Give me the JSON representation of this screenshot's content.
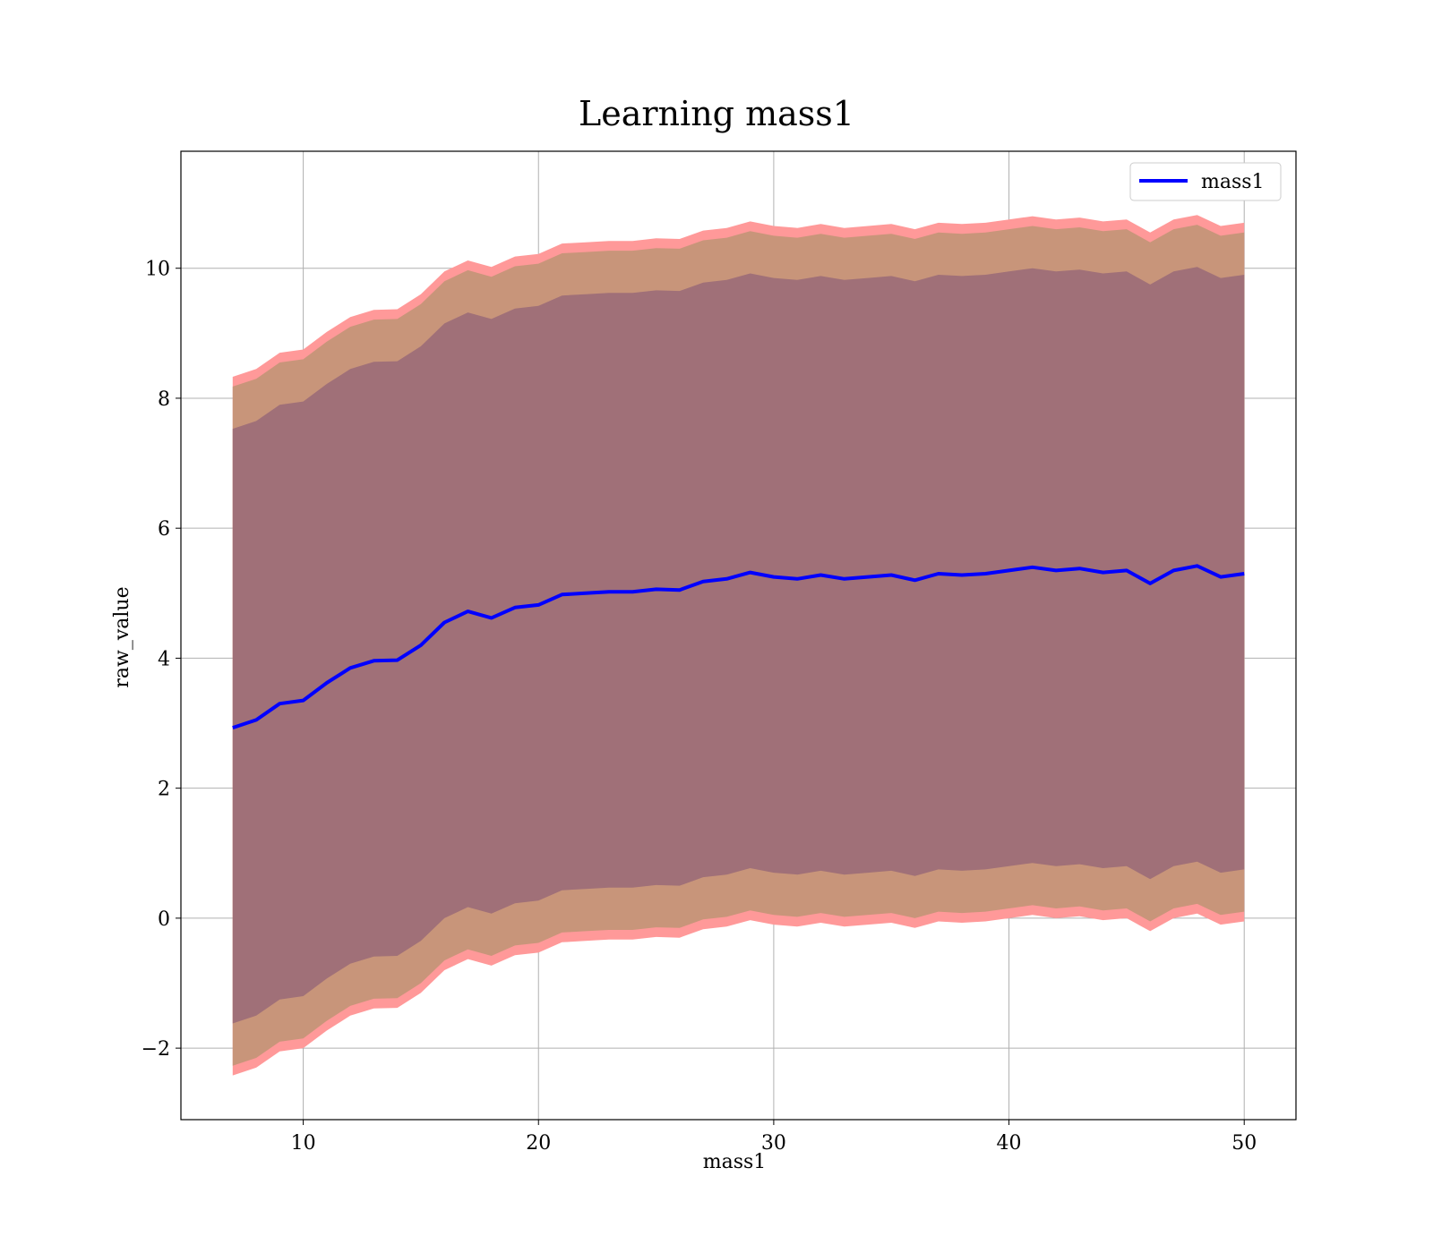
{
  "chart_data": {
    "type": "line",
    "title": "Learning mass1",
    "xlabel": "mass1",
    "ylabel": "raw_value",
    "xlim": [
      4.8,
      52.2
    ],
    "ylim": [
      -3.1,
      11.8
    ],
    "xticks": [
      10,
      20,
      30,
      40,
      50
    ],
    "xtick_labels": [
      "10",
      "20",
      "30",
      "40",
      "50"
    ],
    "yticks": [
      -2,
      0,
      2,
      4,
      6,
      8,
      10
    ],
    "ytick_labels": [
      "−2",
      "0",
      "2",
      "4",
      "6",
      "8",
      "10"
    ],
    "grid": true,
    "legend": {
      "placement": "top-right",
      "entries": [
        "mass1"
      ]
    },
    "colors": {
      "line": "#0000ff",
      "band_outer": "#ff9999",
      "band_middle": "#c8957a",
      "band_inner": "#a07078",
      "grid": "#b0b0b0"
    },
    "x": [
      7,
      8,
      9,
      10,
      11,
      12,
      13,
      14,
      15,
      16,
      17,
      18,
      19,
      20,
      21,
      22,
      23,
      24,
      25,
      26,
      27,
      28,
      29,
      30,
      31,
      32,
      33,
      34,
      35,
      36,
      37,
      38,
      39,
      40,
      41,
      42,
      43,
      44,
      45,
      46,
      47,
      48,
      49,
      50
    ],
    "series": [
      {
        "name": "mass1",
        "values": [
          2.93,
          3.05,
          3.3,
          3.35,
          3.62,
          3.85,
          3.96,
          3.97,
          4.2,
          4.55,
          4.72,
          4.62,
          4.78,
          4.82,
          4.98,
          5.0,
          5.02,
          5.02,
          5.06,
          5.05,
          5.18,
          5.22,
          5.32,
          5.25,
          5.22,
          5.28,
          5.22,
          5.25,
          5.28,
          5.2,
          5.3,
          5.28,
          5.3,
          5.35,
          5.4,
          5.35,
          5.38,
          5.32,
          5.35,
          5.15,
          5.35,
          5.42,
          5.25,
          5.3
        ]
      }
    ],
    "bands": [
      {
        "level": "outer",
        "lower_offset": 5.35,
        "upper_offset": 5.4
      },
      {
        "level": "middle",
        "lower_offset": 5.2,
        "upper_offset": 5.25
      },
      {
        "level": "inner",
        "lower_offset": 4.55,
        "upper_offset": 4.6
      }
    ]
  }
}
